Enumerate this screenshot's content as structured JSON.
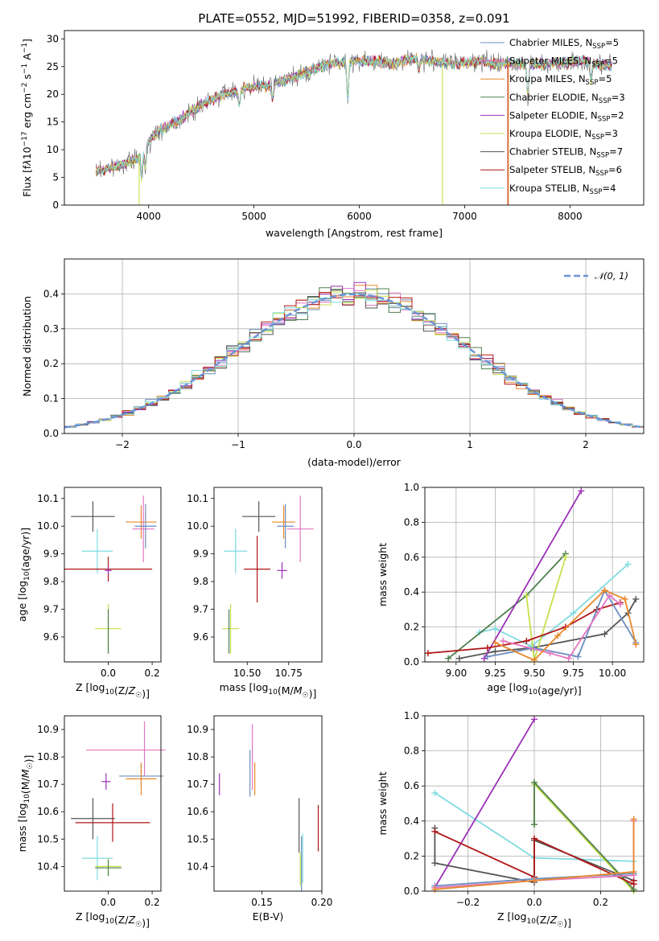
{
  "title": "PLATE=0552, MJD=51992, FIBERID=0358, z=0.091",
  "colors": {
    "Chabrier MILES": "#6c8ebf",
    "Salpeter MILES": "#e377c2",
    "Kroupa MILES": "#e8892b",
    "Chabrier ELODIE": "#4d7f4d",
    "Salpeter ELODIE": "#9b30b8",
    "Kroupa ELODIE": "#c6e04e",
    "Chabrier STELIB": "#555555",
    "Salpeter STELIB": "#b01515",
    "Kroupa STELIB": "#7fdbe0"
  },
  "legend": [
    {
      "model": "Chabrier MILES",
      "pre": "Chabrier MILES, N",
      "sub": "SSP",
      "post": "=5"
    },
    {
      "model": "Salpeter MILES",
      "pre": "Salpeter MILES, N",
      "sub": "SSP",
      "post": "=5"
    },
    {
      "model": "Kroupa MILES",
      "pre": "Kroupa MILES, N",
      "sub": "SSP",
      "post": "=5"
    },
    {
      "model": "Chabrier ELODIE",
      "pre": "Chabrier ELODIE, N",
      "sub": "SSP",
      "post": "=3"
    },
    {
      "model": "Salpeter ELODIE",
      "pre": "Salpeter ELODIE, N",
      "sub": "SSP",
      "post": "=2"
    },
    {
      "model": "Kroupa ELODIE",
      "pre": "Kroupa ELODIE, N",
      "sub": "SSP",
      "post": "=3"
    },
    {
      "model": "Chabrier STELIB",
      "pre": "Chabrier STELIB, N",
      "sub": "SSP",
      "post": "=7"
    },
    {
      "model": "Salpeter STELIB",
      "pre": "Salpeter STELIB, N",
      "sub": "SSP",
      "post": "=6"
    },
    {
      "model": "Kroupa STELIB",
      "pre": "Kroupa STELIB, N",
      "sub": "SSP",
      "post": "=4"
    }
  ],
  "chart_data": [
    {
      "id": "spectrum",
      "type": "line",
      "xlabel": "wavelength [Angstrom, rest frame]",
      "ylabel_parts": [
        "Flux [f",
        "λ",
        "10",
        "−17",
        " erg cm",
        "−2",
        " s",
        "−1",
        " A",
        "−1",
        "]"
      ],
      "xlim": [
        3200,
        8700
      ],
      "ylim": [
        0,
        31.5
      ],
      "xticks": [
        4000,
        5000,
        6000,
        7000,
        8000
      ],
      "yticks": [
        0,
        5,
        10,
        15,
        20,
        25,
        30
      ],
      "grid": false,
      "legend_position": "right",
      "continuum": {
        "x": [
          3500,
          3700,
          3900,
          4000,
          4100,
          4300,
          4500,
          4700,
          4900,
          5100,
          5300,
          5500,
          5700,
          5900,
          6100,
          6300,
          6500,
          6700,
          6900,
          7100,
          7300,
          7500,
          7800,
          8100,
          8400
        ],
        "y": [
          6,
          7,
          8.5,
          11.5,
          13.5,
          15.5,
          18,
          20,
          21,
          21.5,
          22.5,
          24,
          25.5,
          26,
          26,
          25.5,
          26.5,
          26,
          25.5,
          26,
          25.5,
          25.5,
          25.5,
          26,
          25
        ]
      },
      "features": [
        {
          "x": 3934,
          "depth": 5
        },
        {
          "x": 3969,
          "depth": 4
        },
        {
          "x": 4861,
          "depth": 3
        },
        {
          "x": 5175,
          "depth": 3
        },
        {
          "x": 5890,
          "depth": 7
        },
        {
          "x": 6563,
          "depth": 2
        },
        {
          "x": 7600,
          "depth": 6
        },
        {
          "x": 8200,
          "depth": 3
        }
      ],
      "dropouts": [
        {
          "model": "Kroupa ELODIE",
          "x": 3910
        },
        {
          "model": "Kroupa ELODIE",
          "x": 6790
        },
        {
          "model": "Salpeter STELIB",
          "x": 7410
        },
        {
          "model": "Kroupa MILES",
          "x": 7415
        }
      ],
      "range": [
        3500,
        8400
      ]
    },
    {
      "id": "residuals",
      "type": "histogram",
      "xlabel": "(data-model)/error",
      "ylabel": "Normed distribution",
      "xlim": [
        -2.5,
        2.5
      ],
      "ylim": [
        0,
        0.5
      ],
      "xticks": [
        -2,
        -1,
        0,
        1,
        2
      ],
      "yticks": [
        0,
        0.1,
        0.2,
        0.3,
        0.4
      ],
      "grid": true,
      "bin_width": 0.1,
      "reference": {
        "label": "𝒩(0, 1)",
        "color": "#6b93d6",
        "style": "dashed"
      },
      "legend_position": "upper right"
    },
    {
      "id": "age-vs-Z",
      "type": "errorbar",
      "xlabel": "Z [log10(Z/Z☉)]",
      "ylabel": "age  [log10(age/yr)]",
      "xlim": [
        -0.2,
        0.24
      ],
      "ylim": [
        9.51,
        10.14
      ],
      "xticks": [
        0,
        0.2
      ],
      "yticks": [
        9.6,
        9.7,
        9.8,
        9.9,
        10.0,
        10.1
      ],
      "grid": false,
      "points": [
        {
          "model": "Chabrier STELIB",
          "x": -0.07,
          "xerr": 0.1,
          "y": 10.035,
          "yerr": 0.055
        },
        {
          "model": "Kroupa STELIB",
          "x": -0.05,
          "xerr": 0.07,
          "y": 9.91,
          "yerr": 0.08
        },
        {
          "model": "Salpeter STELIB",
          "x": 0.0,
          "xerr": 0.2,
          "y": 9.845,
          "yerr": 0.045
        },
        {
          "model": "Salpeter ELODIE",
          "x": 0.0,
          "xerr": 0.015,
          "y": 9.84,
          "yerr": 0.015
        },
        {
          "model": "Kroupa ELODIE",
          "x": 0.0,
          "xerr": 0.06,
          "y": 9.63,
          "yerr": 0.09
        },
        {
          "model": "Chabrier ELODIE",
          "x": 0.0,
          "xerr": 0.0,
          "y": 9.62,
          "yerr": 0.08
        },
        {
          "model": "Kroupa MILES",
          "x": 0.15,
          "xerr": 0.07,
          "y": 10.015,
          "yerr": 0.06
        },
        {
          "model": "Salpeter MILES",
          "x": 0.16,
          "xerr": 0.05,
          "y": 9.99,
          "yerr": 0.12
        },
        {
          "model": "Chabrier MILES",
          "x": 0.17,
          "xerr": 0.05,
          "y": 10.0,
          "yerr": 0.08
        }
      ]
    },
    {
      "id": "age-vs-mass",
      "type": "errorbar",
      "xlabel": "mass [log10(M/M☉)]",
      "ylabel": "",
      "xlim": [
        10.3,
        10.95
      ],
      "ylim": [
        9.51,
        10.14
      ],
      "xticks": [
        10.5,
        10.75
      ],
      "yticks": [
        9.6,
        9.7,
        9.8,
        9.9,
        10.0,
        10.1
      ],
      "grid": false,
      "points": [
        {
          "model": "Chabrier STELIB",
          "x": 10.57,
          "xerr": 0.1,
          "y": 10.035,
          "yerr": 0.055
        },
        {
          "model": "Kroupa STELIB",
          "x": 10.43,
          "xerr": 0.07,
          "y": 9.91,
          "yerr": 0.08
        },
        {
          "model": "Salpeter STELIB",
          "x": 10.56,
          "xerr": 0.08,
          "y": 9.845,
          "yerr": 0.12
        },
        {
          "model": "Salpeter ELODIE",
          "x": 10.71,
          "xerr": 0.03,
          "y": 9.84,
          "yerr": 0.03
        },
        {
          "model": "Kroupa ELODIE",
          "x": 10.4,
          "xerr": 0.05,
          "y": 9.63,
          "yerr": 0.09
        },
        {
          "model": "Chabrier ELODIE",
          "x": 10.39,
          "xerr": 0.0,
          "y": 9.62,
          "yerr": 0.08
        },
        {
          "model": "Kroupa MILES",
          "x": 10.72,
          "xerr": 0.07,
          "y": 10.015,
          "yerr": 0.06
        },
        {
          "model": "Salpeter MILES",
          "x": 10.82,
          "xerr": 0.08,
          "y": 9.99,
          "yerr": 0.12
        },
        {
          "model": "Chabrier MILES",
          "x": 10.73,
          "xerr": 0.05,
          "y": 10.0,
          "yerr": 0.08
        }
      ]
    },
    {
      "id": "massweight-vs-age",
      "type": "line",
      "xlabel": "age  [log10(age/yr)]",
      "ylabel": "mass weight",
      "xlim": [
        8.8,
        10.2
      ],
      "ylim": [
        0,
        1
      ],
      "xticks": [
        9.0,
        9.25,
        9.5,
        9.75,
        10.0
      ],
      "yticks": [
        0,
        0.2,
        0.4,
        0.6,
        0.8,
        1.0
      ],
      "grid": true,
      "series": [
        {
          "model": "Chabrier STELIB",
          "x": [
            9.02,
            9.25,
            9.48,
            9.95,
            10.1,
            10.15
          ],
          "y": [
            0.02,
            0.06,
            0.08,
            0.16,
            0.28,
            0.36
          ]
        },
        {
          "model": "Kroupa STELIB",
          "x": [
            9.15,
            9.25,
            9.48,
            9.75,
            10.1
          ],
          "y": [
            0.17,
            0.19,
            0.09,
            0.28,
            0.56
          ]
        },
        {
          "model": "Chabrier ELODIE",
          "x": [
            8.95,
            9.45,
            9.7
          ],
          "y": [
            0.02,
            0.38,
            0.62
          ]
        },
        {
          "model": "Kroupa ELODIE",
          "x": [
            9.45,
            9.5,
            9.7
          ],
          "y": [
            0.38,
            0.01,
            0.6
          ]
        },
        {
          "model": "Salpeter ELODIE",
          "x": [
            9.18,
            9.8
          ],
          "y": [
            0.02,
            0.98
          ]
        },
        {
          "model": "Salpeter STELIB",
          "x": [
            8.82,
            9.2,
            9.45,
            9.7,
            9.9,
            10.05
          ],
          "y": [
            0.05,
            0.08,
            0.12,
            0.2,
            0.3,
            0.34
          ]
        },
        {
          "model": "Chabrier MILES",
          "x": [
            9.2,
            9.5,
            9.78,
            9.95,
            10.15
          ],
          "y": [
            0.03,
            0.08,
            0.03,
            0.41,
            0.11
          ]
        },
        {
          "model": "Salpeter MILES",
          "x": [
            9.3,
            9.6,
            9.72,
            9.98,
            10.05
          ],
          "y": [
            0.12,
            0.05,
            0.02,
            0.38,
            0.33
          ]
        },
        {
          "model": "Kroupa MILES",
          "x": [
            9.25,
            9.5,
            9.65,
            9.95,
            10.08,
            10.15
          ],
          "y": [
            0.11,
            0.01,
            0.15,
            0.41,
            0.36,
            0.1
          ]
        }
      ]
    },
    {
      "id": "mass-vs-Z",
      "type": "errorbar",
      "xlabel": "Z [log10(Z/Z☉)]",
      "ylabel": "mass [log10(M/M☉)]",
      "xlim": [
        -0.2,
        0.24
      ],
      "ylim": [
        10.31,
        10.95
      ],
      "xticks": [
        0,
        0.2
      ],
      "yticks": [
        10.4,
        10.5,
        10.6,
        10.7,
        10.8,
        10.9
      ],
      "grid": false,
      "points": [
        {
          "model": "Chabrier STELIB",
          "x": -0.07,
          "xerr": 0.1,
          "y": 10.575,
          "yerr": 0.075
        },
        {
          "model": "Salpeter STELIB",
          "x": 0.02,
          "xerr": 0.17,
          "y": 10.56,
          "yerr": 0.07
        },
        {
          "model": "Kroupa STELIB",
          "x": -0.05,
          "xerr": 0.07,
          "y": 10.43,
          "yerr": 0.08
        },
        {
          "model": "Kroupa ELODIE",
          "x": 0.0,
          "xerr": 0.06,
          "y": 10.4,
          "yerr": 0.03
        },
        {
          "model": "Chabrier ELODIE",
          "x": 0.0,
          "xerr": 0.06,
          "y": 10.395,
          "yerr": 0.03
        },
        {
          "model": "Salpeter ELODIE",
          "x": -0.01,
          "xerr": 0.02,
          "y": 10.71,
          "yerr": 0.03
        },
        {
          "model": "Salpeter MILES",
          "x": 0.08,
          "xerr": 0.18,
          "y": 10.825,
          "yerr": 0.0
        },
        {
          "model": "Chabrier MILES",
          "x": 0.15,
          "xerr": 0.1,
          "y": 10.73,
          "yerr": 0.04
        },
        {
          "model": "Kroupa MILES",
          "x": 0.15,
          "xerr": 0.07,
          "y": 10.72,
          "yerr": 0.06
        },
        {
          "model": "Salpeter MILES",
          "x": 0.165,
          "xerr": 0.0,
          "y": 10.83,
          "yerr": 0.1
        }
      ]
    },
    {
      "id": "mass-vs-EBV",
      "type": "errorbar",
      "xlabel": "E(B-V)",
      "ylabel": "",
      "xlim": [
        0.11,
        0.2
      ],
      "ylim": [
        10.31,
        10.95
      ],
      "xticks": [
        0.15,
        0.2
      ],
      "yticks": [
        10.4,
        10.5,
        10.6,
        10.7,
        10.8,
        10.9
      ],
      "grid": false,
      "points": [
        {
          "model": "Salpeter ELODIE",
          "x": 0.1145,
          "xerr": 0.0,
          "y": 10.7,
          "yerr": 0.04
        },
        {
          "model": "Chabrier MILES",
          "x": 0.14,
          "xerr": 0.0,
          "y": 10.74,
          "yerr": 0.085
        },
        {
          "model": "Salpeter MILES",
          "x": 0.142,
          "xerr": 0.0,
          "y": 10.8,
          "yerr": 0.12
        },
        {
          "model": "Kroupa MILES",
          "x": 0.144,
          "xerr": 0.0,
          "y": 10.72,
          "yerr": 0.06
        },
        {
          "model": "Chabrier STELIB",
          "x": 0.181,
          "xerr": 0.0,
          "y": 10.55,
          "yerr": 0.1
        },
        {
          "model": "Kroupa ELODIE",
          "x": 0.182,
          "xerr": 0.0,
          "y": 10.39,
          "yerr": 0.06
        },
        {
          "model": "Chabrier MILES",
          "x": 0.183,
          "xerr": 0.0,
          "y": 10.41,
          "yerr": 0.1
        },
        {
          "model": "Kroupa STELIB",
          "x": 0.184,
          "xerr": 0.0,
          "y": 10.43,
          "yerr": 0.09
        },
        {
          "model": "Salpeter STELIB",
          "x": 0.197,
          "xerr": 0.0,
          "y": 10.54,
          "yerr": 0.085
        }
      ]
    },
    {
      "id": "massweight-vs-Z",
      "type": "line",
      "xlabel": "Z [log10(Z/Z☉)]",
      "ylabel": "mass weight",
      "xlim": [
        -0.33,
        0.33
      ],
      "ylim": [
        0,
        1
      ],
      "xticks": [
        -0.2,
        0,
        0.2
      ],
      "yticks": [
        0,
        0.2,
        0.4,
        0.6,
        0.8,
        1.0
      ],
      "grid": true,
      "series": [
        {
          "model": "Kroupa STELIB",
          "x": [
            -0.3,
            0.0,
            0.3
          ],
          "y": [
            0.56,
            0.19,
            0.17
          ]
        },
        {
          "model": "Salpeter ELODIE",
          "x": [
            -0.3,
            0.0
          ],
          "y": [
            0.02,
            0.98
          ]
        },
        {
          "model": "Kroupa ELODIE",
          "x": [
            0.0,
            0.0,
            0.3
          ],
          "y": [
            0.38,
            0.61,
            0.0
          ]
        },
        {
          "model": "Chabrier ELODIE",
          "x": [
            0.0,
            0.0,
            0.3
          ],
          "y": [
            0.38,
            0.62,
            0.01
          ]
        },
        {
          "model": "Chabrier STELIB",
          "x": [
            -0.3,
            -0.3,
            0.0,
            0.0,
            0.3,
            0.3
          ],
          "y": [
            0.36,
            0.16,
            0.05,
            0.29,
            0.06,
            0.04
          ]
        },
        {
          "model": "Salpeter STELIB",
          "x": [
            -0.3,
            0.0,
            0.0,
            0.3,
            0.3
          ],
          "y": [
            0.34,
            0.08,
            0.3,
            0.04,
            0.06
          ]
        },
        {
          "model": "Chabrier MILES",
          "x": [
            -0.3,
            0.0,
            0.3,
            0.3
          ],
          "y": [
            0.03,
            0.07,
            0.1,
            0.41
          ]
        },
        {
          "model": "Salpeter MILES",
          "x": [
            -0.3,
            0.0,
            0.3,
            0.3
          ],
          "y": [
            0.02,
            0.06,
            0.09,
            0.4
          ]
        },
        {
          "model": "Kroupa MILES",
          "x": [
            -0.3,
            0.0,
            0.3,
            0.3
          ],
          "y": [
            0.01,
            0.06,
            0.11,
            0.41
          ]
        }
      ]
    }
  ]
}
